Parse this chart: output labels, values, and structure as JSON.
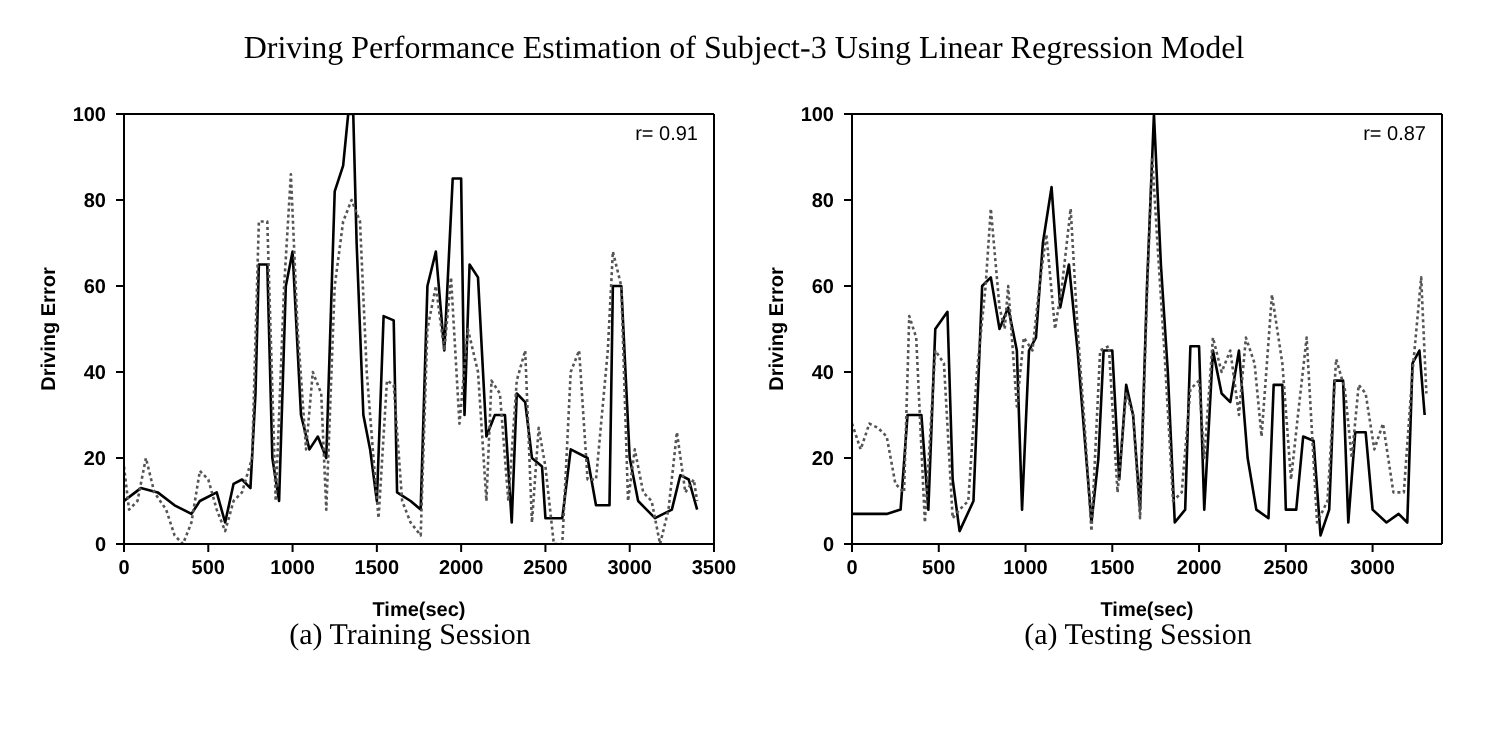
{
  "chart_data": [
    {
      "type": "line",
      "title": "Driving Performance Estimation of Subject-3 Using Linear Regression Model",
      "subtitle": "(a) Training Session",
      "xlabel": "Time(sec)",
      "ylabel": "Driving Error",
      "xlim": [
        0,
        3500
      ],
      "xticks": [
        0,
        500,
        1000,
        1500,
        2000,
        2500,
        3000,
        3500
      ],
      "ylim": [
        0,
        100
      ],
      "yticks": [
        0,
        20,
        40,
        60,
        80,
        100
      ],
      "legend": false,
      "marker": "none",
      "annotations": [
        "r= 0.91"
      ],
      "series": [
        {
          "color": "#000000",
          "line_style": "solid",
          "x": [
            0,
            100,
            200,
            300,
            400,
            450,
            550,
            600,
            650,
            700,
            750,
            780,
            800,
            850,
            880,
            920,
            960,
            1000,
            1050,
            1100,
            1150,
            1200,
            1250,
            1300,
            1330,
            1360,
            1380,
            1420,
            1460,
            1500,
            1540,
            1600,
            1620,
            1700,
            1760,
            1800,
            1850,
            1900,
            1950,
            2000,
            2020,
            2050,
            2100,
            2150,
            2200,
            2260,
            2300,
            2330,
            2380,
            2420,
            2480,
            2500,
            2600,
            2650,
            2750,
            2800,
            2880,
            2900,
            2950,
            3000,
            3050,
            3100,
            3150,
            3250,
            3300,
            3350,
            3400
          ],
          "values": [
            10,
            13,
            12,
            9,
            7,
            10,
            12,
            5,
            14,
            15,
            13,
            35,
            65,
            65,
            20,
            10,
            60,
            68,
            30,
            22,
            25,
            20,
            82,
            88,
            100,
            100,
            70,
            30,
            22,
            10,
            53,
            52,
            12,
            10,
            8,
            60,
            68,
            45,
            85,
            85,
            30,
            65,
            62,
            25,
            30,
            30,
            5,
            35,
            33,
            20,
            18,
            6,
            6,
            22,
            20,
            9,
            9,
            60,
            60,
            20,
            10,
            8,
            6,
            8,
            16,
            15,
            8
          ]
        },
        {
          "color": "#555555",
          "line_style": "dotted",
          "x": [
            0,
            30,
            80,
            130,
            180,
            250,
            300,
            350,
            400,
            450,
            500,
            550,
            600,
            650,
            700,
            760,
            800,
            850,
            900,
            950,
            990,
            1030,
            1080,
            1120,
            1170,
            1200,
            1250,
            1300,
            1350,
            1400,
            1440,
            1480,
            1510,
            1560,
            1600,
            1650,
            1700,
            1760,
            1800,
            1850,
            1900,
            1940,
            1990,
            2040,
            2100,
            2150,
            2180,
            2230,
            2280,
            2330,
            2380,
            2420,
            2460,
            2500,
            2550,
            2600,
            2650,
            2700,
            2750,
            2800,
            2870,
            2900,
            2950,
            2990,
            3030,
            3080,
            3130,
            3180,
            3230,
            3280,
            3330,
            3380,
            3400
          ],
          "values": [
            18,
            8,
            10,
            20,
            12,
            8,
            2,
            0,
            5,
            17,
            15,
            8,
            3,
            10,
            12,
            20,
            75,
            75,
            10,
            60,
            86,
            50,
            22,
            40,
            35,
            8,
            60,
            75,
            80,
            75,
            40,
            20,
            6,
            38,
            37,
            10,
            5,
            2,
            50,
            60,
            45,
            62,
            28,
            50,
            40,
            10,
            38,
            35,
            10,
            38,
            45,
            5,
            27,
            18,
            0,
            0,
            40,
            45,
            15,
            15,
            45,
            68,
            60,
            10,
            22,
            12,
            10,
            0,
            8,
            26,
            12,
            15,
            10
          ]
        }
      ]
    },
    {
      "type": "line",
      "subtitle": "(a) Testing Session",
      "xlabel": "Time(sec)",
      "ylabel": "Driving Error",
      "xlim": [
        0,
        3400
      ],
      "xticks": [
        0,
        500,
        1000,
        1500,
        2000,
        2500,
        3000
      ],
      "ylim": [
        0,
        100
      ],
      "yticks": [
        0,
        20,
        40,
        60,
        80,
        100
      ],
      "legend": false,
      "marker": "none",
      "annotations": [
        "r= 0.87"
      ],
      "series": [
        {
          "color": "#000000",
          "line_style": "solid",
          "x": [
            0,
            100,
            200,
            280,
            320,
            400,
            440,
            480,
            550,
            580,
            620,
            700,
            750,
            800,
            850,
            900,
            950,
            980,
            1020,
            1060,
            1100,
            1150,
            1200,
            1250,
            1300,
            1350,
            1380,
            1420,
            1450,
            1500,
            1540,
            1580,
            1620,
            1660,
            1700,
            1740,
            1780,
            1820,
            1860,
            1920,
            1950,
            2000,
            2030,
            2080,
            2130,
            2180,
            2230,
            2280,
            2330,
            2400,
            2430,
            2480,
            2500,
            2560,
            2600,
            2660,
            2700,
            2750,
            2780,
            2830,
            2860,
            2900,
            2960,
            3000,
            3080,
            3150,
            3200,
            3230,
            3270,
            3300
          ],
          "values": [
            7,
            7,
            7,
            8,
            30,
            30,
            8,
            50,
            54,
            15,
            3,
            10,
            60,
            62,
            50,
            55,
            45,
            8,
            45,
            48,
            70,
            83,
            55,
            65,
            45,
            20,
            5,
            20,
            45,
            45,
            15,
            37,
            30,
            8,
            60,
            100,
            65,
            40,
            5,
            8,
            46,
            46,
            8,
            45,
            35,
            33,
            45,
            20,
            8,
            6,
            37,
            37,
            8,
            8,
            25,
            24,
            2,
            8,
            38,
            38,
            5,
            26,
            26,
            8,
            5,
            7,
            5,
            42,
            45,
            30
          ]
        },
        {
          "color": "#555555",
          "line_style": "dotted",
          "x": [
            0,
            50,
            100,
            150,
            200,
            250,
            300,
            330,
            370,
            420,
            480,
            530,
            580,
            620,
            670,
            720,
            770,
            800,
            850,
            880,
            900,
            950,
            990,
            1040,
            1080,
            1120,
            1170,
            1210,
            1260,
            1300,
            1340,
            1380,
            1430,
            1480,
            1530,
            1580,
            1620,
            1660,
            1700,
            1730,
            1760,
            1800,
            1850,
            1900,
            1950,
            2000,
            2030,
            2080,
            2130,
            2180,
            2230,
            2270,
            2320,
            2360,
            2420,
            2480,
            2530,
            2570,
            2620,
            2680,
            2740,
            2790,
            2840,
            2880,
            2920,
            2960,
            3010,
            3060,
            3120,
            3180,
            3230,
            3280,
            3310
          ],
          "values": [
            28,
            22,
            28,
            27,
            25,
            14,
            12,
            53,
            48,
            5,
            45,
            42,
            6,
            8,
            10,
            40,
            60,
            78,
            55,
            50,
            60,
            32,
            48,
            45,
            60,
            72,
            50,
            60,
            78,
            50,
            28,
            3,
            45,
            46,
            12,
            35,
            30,
            6,
            58,
            90,
            70,
            45,
            10,
            12,
            36,
            38,
            20,
            48,
            40,
            45,
            30,
            48,
            42,
            25,
            58,
            42,
            15,
            30,
            48,
            5,
            10,
            43,
            36,
            20,
            37,
            35,
            22,
            28,
            12,
            12,
            40,
            62,
            35
          ]
        }
      ]
    }
  ]
}
